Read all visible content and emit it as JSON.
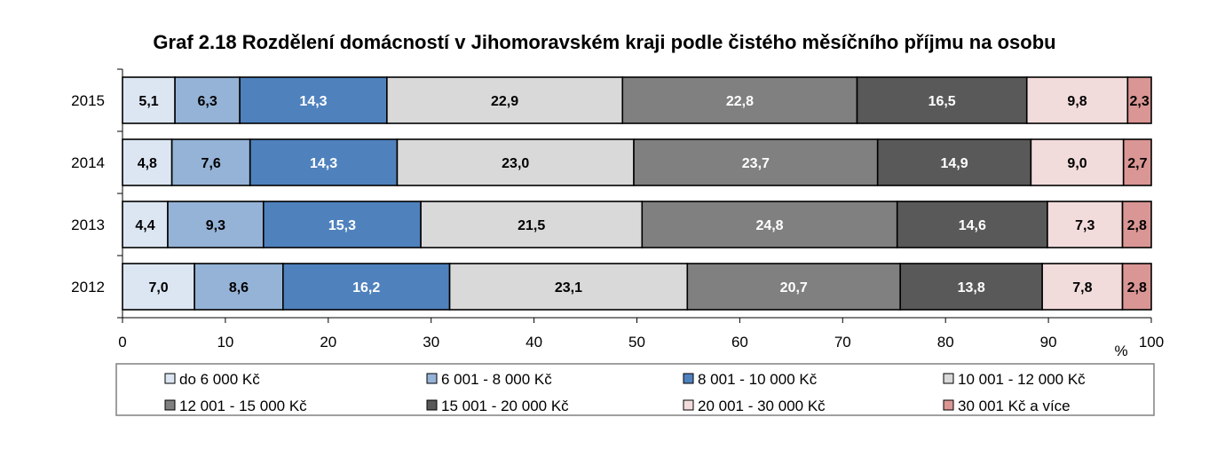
{
  "chart_data": {
    "type": "bar",
    "orientation": "horizontal",
    "stacked": true,
    "title": "Graf 2.18 Rozdělení domácností v Jihomoravském kraji podle čistého měsíčního příjmu na osobu",
    "categories": [
      "2015",
      "2014",
      "2013",
      "2012"
    ],
    "series": [
      {
        "name": "do 6 000 Kč",
        "color": "#dce6f2",
        "label_color": "#000000",
        "values": [
          5.1,
          4.8,
          4.4,
          7.0
        ]
      },
      {
        "name": "6 001 - 8 000 Kč",
        "color": "#95b3d7",
        "label_color": "#000000",
        "values": [
          6.3,
          7.6,
          9.3,
          8.6
        ]
      },
      {
        "name": "8 001 - 10 000 Kč",
        "color": "#4f81bd",
        "label_color": "#ffffff",
        "values": [
          14.3,
          14.3,
          15.3,
          16.2
        ]
      },
      {
        "name": "10 001 - 12 000 Kč",
        "color": "#d9d9d9",
        "label_color": "#000000",
        "values": [
          22.9,
          23.0,
          21.5,
          23.1
        ]
      },
      {
        "name": "12 001 - 15 000 Kč",
        "color": "#808080",
        "label_color": "#ffffff",
        "values": [
          22.8,
          23.7,
          24.8,
          20.7
        ]
      },
      {
        "name": "15 001 - 20 000 Kč",
        "color": "#595959",
        "label_color": "#ffffff",
        "values": [
          16.5,
          14.9,
          14.6,
          13.8
        ]
      },
      {
        "name": "20 001 - 30 000 Kč",
        "color": "#f2dcdb",
        "label_color": "#000000",
        "values": [
          9.8,
          9.0,
          7.3,
          7.8
        ]
      },
      {
        "name": "30 001 Kč a více",
        "color": "#da9694",
        "label_color": "#000000",
        "values": [
          2.3,
          2.7,
          2.8,
          2.8
        ]
      }
    ],
    "xlim": [
      0,
      100
    ],
    "xticks": [
      "0",
      "10",
      "20",
      "30",
      "40",
      "50",
      "60",
      "70",
      "80",
      "90",
      "100"
    ],
    "xunit": "%",
    "grid": false,
    "legend": "bottom"
  }
}
